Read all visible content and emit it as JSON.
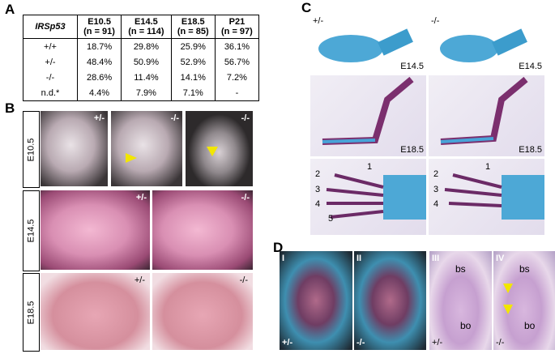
{
  "panel_a": {
    "label": "A",
    "table": {
      "corner": "IRSp53",
      "columns": [
        {
          "stage": "E10.5",
          "n": "(n = 91)"
        },
        {
          "stage": "E14.5",
          "n": "(n = 114)"
        },
        {
          "stage": "E18.5",
          "n": "(n = 85)"
        },
        {
          "stage": "P21",
          "n": "(n = 97)"
        }
      ],
      "rows": [
        [
          "+/+",
          "18.7%",
          "29.8%",
          "25.9%",
          "36.1%"
        ],
        [
          "+/-",
          "48.4%",
          "50.9%",
          "52.9%",
          "56.7%"
        ],
        [
          "-/-",
          "28.6%",
          "11.4%",
          "14.1%",
          "7.2%"
        ],
        [
          "n.d.*",
          "4.4%",
          "7.9%",
          "7.1%",
          "-"
        ]
      ]
    }
  },
  "panel_b": {
    "label": "B",
    "rows": [
      {
        "stage": "E10.5",
        "images": [
          "+/-",
          "-/-",
          "-/-"
        ]
      },
      {
        "stage": "E14.5",
        "images": [
          "+/-",
          "-/-"
        ]
      },
      {
        "stage": "E18.5",
        "images": [
          "+/-",
          "-/-"
        ]
      }
    ]
  },
  "panel_c": {
    "label": "C",
    "genotypes": [
      "+/-",
      "-/-"
    ],
    "stages": [
      [
        "E14.5",
        "E14.5"
      ],
      [
        "E18.5",
        "E18.5"
      ]
    ],
    "digits_left": [
      "1",
      "2",
      "3",
      "4",
      "5"
    ],
    "digits_right": [
      "1",
      "2",
      "3",
      "4"
    ]
  },
  "panel_d": {
    "label": "D",
    "images": [
      {
        "numeral": "I",
        "genotype": "+/-"
      },
      {
        "numeral": "II",
        "genotype": "-/-"
      },
      {
        "numeral": "III",
        "genotype": "+/-",
        "regions": [
          "bs",
          "bo"
        ]
      },
      {
        "numeral": "IV",
        "genotype": "-/-",
        "regions": [
          "bs",
          "bo"
        ]
      }
    ]
  }
}
